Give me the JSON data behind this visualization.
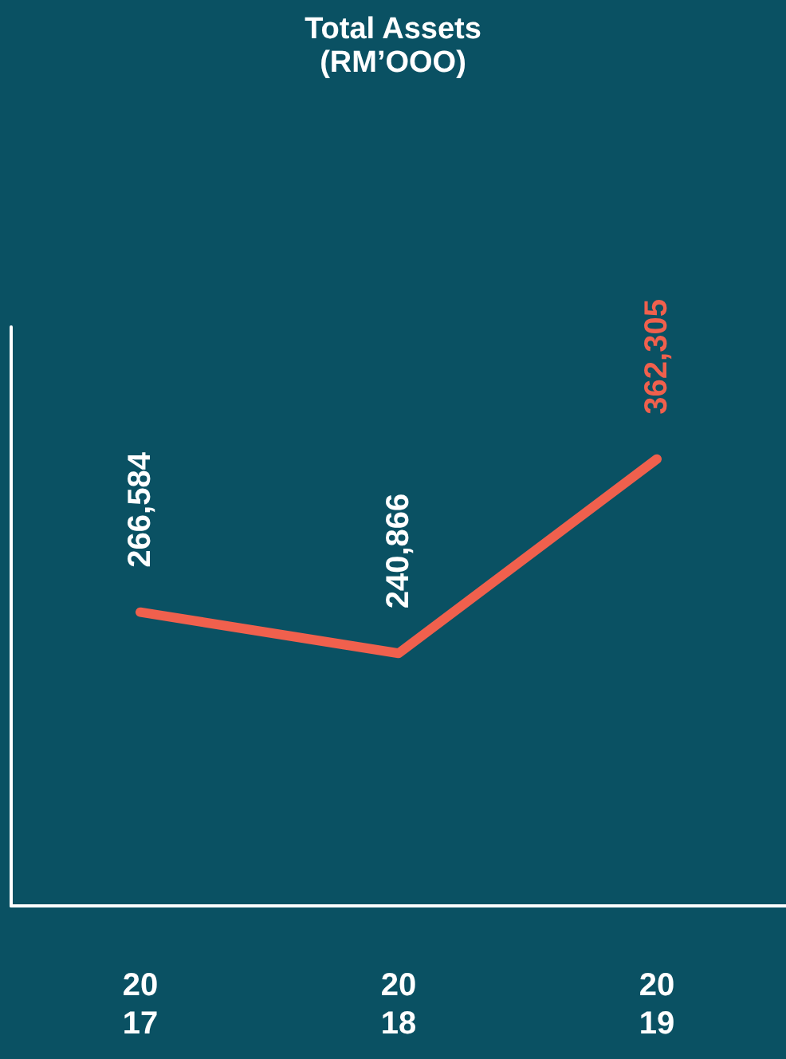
{
  "chart_data": {
    "type": "line",
    "title": "Total Assets",
    "subtitle": "(RM’OOO)",
    "categories": [
      "2017",
      "2018",
      "2019"
    ],
    "series": [
      {
        "color": "#f0604d",
        "values": [
          266584,
          240866,
          362305
        ],
        "value_labels": [
          "266,584",
          "240,866",
          "362,305"
        ]
      }
    ],
    "tick_labels": "x",
    "grid": false,
    "marker": "none",
    "line_style": "solid"
  }
}
